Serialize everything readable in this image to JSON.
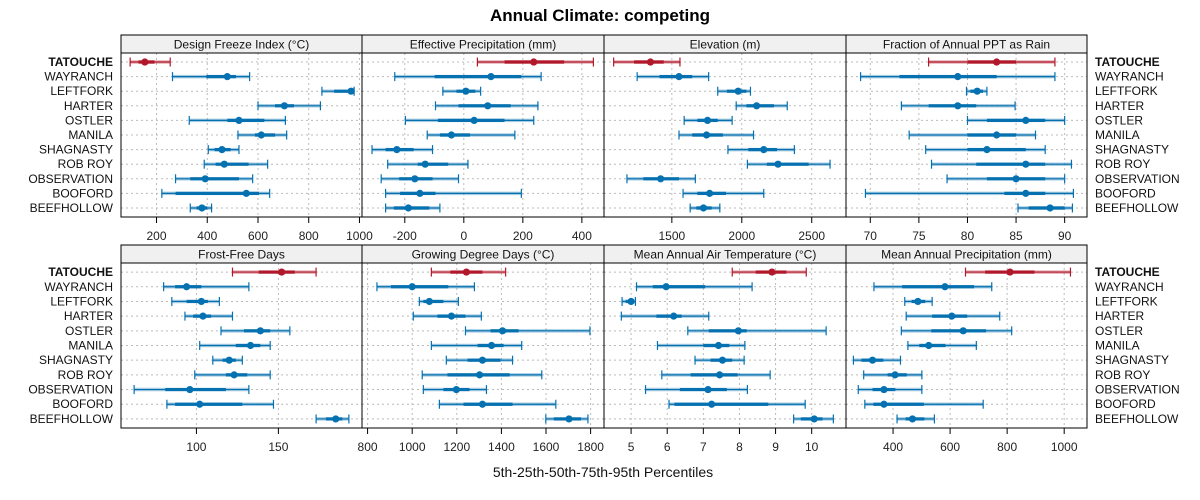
{
  "chart_data": {
    "type": "dot-interval",
    "title": "Annual Climate: competing",
    "xlabel": "5th-25th-50th-75th-95th Percentiles",
    "quantile_labels": [
      "p5",
      "p25",
      "p50",
      "p75",
      "p95"
    ],
    "sites": [
      "TATOUCHE",
      "WAYRANCH",
      "LEFTFORK",
      "HARTER",
      "OSTLER",
      "MANILA",
      "SHAGNASTY",
      "ROB ROY",
      "OBSERVATION",
      "BOOFORD",
      "BEEFHOLLOW"
    ],
    "highlight_site": "TATOUCHE",
    "colors": {
      "highlight": "#B2182B",
      "other": "#0571B0",
      "grid": "#BBBBBB",
      "strip_bg": "#F0F0F0"
    },
    "grid": true,
    "panels": [
      {
        "name": "Design Freeze Index (°C)",
        "xlim": [
          60,
          1010
        ],
        "ticks": [
          200,
          400,
          600,
          800,
          1000
        ],
        "data": [
          [
            96,
            129,
            154,
            192,
            254
          ],
          [
            263,
            396,
            479,
            513,
            567
          ],
          [
            852,
            900,
            967,
            975,
            979
          ],
          [
            600,
            667,
            704,
            742,
            846
          ],
          [
            329,
            479,
            525,
            625,
            708
          ],
          [
            521,
            588,
            613,
            667,
            713
          ],
          [
            404,
            429,
            458,
            492,
            525
          ],
          [
            388,
            433,
            467,
            563,
            638
          ],
          [
            275,
            333,
            392,
            525,
            579
          ],
          [
            221,
            275,
            554,
            604,
            646
          ],
          [
            333,
            358,
            379,
            400,
            417
          ]
        ]
      },
      {
        "name": "Effective Precipitation (mm)",
        "xlim": [
          -345,
          475
        ],
        "ticks": [
          -200,
          0,
          200,
          400
        ],
        "data": [
          [
            46,
            138,
            237,
            340,
            439
          ],
          [
            -234,
            -99,
            92,
            195,
            262
          ],
          [
            -71,
            -25,
            7,
            39,
            57
          ],
          [
            -96,
            -18,
            81,
            159,
            251
          ],
          [
            -198,
            -88,
            35,
            138,
            237
          ],
          [
            -124,
            -81,
            -42,
            21,
            173
          ],
          [
            -311,
            -265,
            -227,
            -170,
            -106
          ],
          [
            -258,
            -156,
            -131,
            -53,
            14
          ],
          [
            -280,
            -219,
            -166,
            -106,
            -18
          ],
          [
            -265,
            -216,
            -149,
            -96,
            195
          ],
          [
            -265,
            -237,
            -188,
            -117,
            -81
          ]
        ]
      },
      {
        "name": "Elevation (m)",
        "xlim": [
          1015,
          2745
        ],
        "ticks": [
          1500,
          2000,
          2500
        ],
        "data": [
          [
            1084,
            1230,
            1347,
            1442,
            1558
          ],
          [
            1252,
            1412,
            1551,
            1646,
            1763
          ],
          [
            1828,
            1894,
            1974,
            2033,
            2062
          ],
          [
            1960,
            2033,
            2106,
            2230,
            2325
          ],
          [
            1588,
            1682,
            1755,
            1828,
            1931
          ],
          [
            1551,
            1646,
            1748,
            1865,
            2084
          ],
          [
            1901,
            2047,
            2157,
            2252,
            2376
          ],
          [
            2040,
            2179,
            2259,
            2478,
            2631
          ],
          [
            1179,
            1296,
            1420,
            1551,
            1668
          ],
          [
            1580,
            1682,
            1770,
            1887,
            2157
          ],
          [
            1631,
            1675,
            1726,
            1785,
            1843
          ]
        ]
      },
      {
        "name": "Fraction of Annual PPT as Rain",
        "xlim": [
          67.5,
          92.3
        ],
        "ticks": [
          70,
          75,
          80,
          85,
          90
        ],
        "data": [
          [
            76,
            80,
            83,
            85,
            89
          ],
          [
            69,
            73,
            79,
            83,
            89
          ],
          [
            79.9,
            80.3,
            81,
            81.6,
            82
          ],
          [
            73.2,
            76,
            79,
            80.9,
            84.9
          ],
          [
            80,
            82,
            86,
            88,
            90
          ],
          [
            74,
            80,
            83,
            85,
            87
          ],
          [
            75.7,
            80,
            82,
            86,
            88
          ],
          [
            76.3,
            80.9,
            86,
            88,
            90.7
          ],
          [
            77.9,
            82,
            85,
            88,
            90
          ],
          [
            69.5,
            83.8,
            86,
            88,
            90.9
          ],
          [
            85.2,
            86.3,
            88.5,
            90,
            90.8
          ]
        ]
      },
      {
        "name": "Frost-Free Days",
        "xlim": [
          54,
          201
        ],
        "ticks": [
          100,
          150
        ],
        "data": [
          [
            122,
            138,
            152,
            160,
            173
          ],
          [
            80,
            87,
            94,
            103,
            132
          ],
          [
            85,
            94,
            103,
            107,
            114
          ],
          [
            93,
            98,
            104,
            109,
            122
          ],
          [
            115,
            129,
            139,
            145,
            157
          ],
          [
            102,
            124,
            133,
            139,
            145
          ],
          [
            110,
            116,
            120,
            124,
            128
          ],
          [
            99,
            118,
            123,
            131,
            145
          ],
          [
            62,
            81,
            96,
            118,
            132
          ],
          [
            82,
            87,
            102,
            128,
            147
          ],
          [
            173,
            179,
            185,
            189,
            193
          ]
        ]
      },
      {
        "name": "Growing Degree Days (°C)",
        "xlim": [
          775,
          1860
        ],
        "ticks": [
          800,
          1000,
          1200,
          1400,
          1600,
          1800
        ],
        "data": [
          [
            1086,
            1171,
            1243,
            1315,
            1419
          ],
          [
            842,
            905,
            1000,
            1162,
            1279
          ],
          [
            1032,
            1050,
            1077,
            1140,
            1207
          ],
          [
            1005,
            1113,
            1176,
            1239,
            1310
          ],
          [
            1239,
            1351,
            1405,
            1477,
            1797
          ],
          [
            1086,
            1293,
            1356,
            1410,
            1491
          ],
          [
            1153,
            1248,
            1315,
            1396,
            1450
          ],
          [
            1045,
            1158,
            1302,
            1437,
            1581
          ],
          [
            1050,
            1140,
            1198,
            1257,
            1333
          ],
          [
            1122,
            1230,
            1315,
            1450,
            1644
          ],
          [
            1599,
            1635,
            1703,
            1757,
            1788
          ]
        ]
      },
      {
        "name": "Mean Annual Air Temperature (°C)",
        "xlim": [
          4.25,
          10.95
        ],
        "ticks": [
          5,
          6,
          7,
          8,
          9,
          10
        ],
        "data": [
          [
            7.8,
            8.45,
            8.9,
            9.3,
            9.85
          ],
          [
            5.15,
            5.6,
            5.97,
            7.05,
            8.35
          ],
          [
            4.75,
            4.85,
            5.0,
            5.08,
            5.12
          ],
          [
            4.73,
            5.7,
            6.18,
            6.4,
            7.15
          ],
          [
            6.57,
            7.15,
            7.97,
            8.2,
            10.4
          ],
          [
            5.73,
            7.0,
            7.42,
            7.72,
            8.15
          ],
          [
            6.77,
            7.2,
            7.53,
            7.8,
            8.13
          ],
          [
            5.85,
            6.65,
            7.45,
            7.95,
            8.85
          ],
          [
            5.4,
            6.35,
            7.13,
            7.65,
            8.22
          ],
          [
            6.05,
            6.2,
            7.23,
            8.8,
            9.82
          ],
          [
            9.5,
            9.7,
            10.07,
            10.3,
            10.6
          ]
        ]
      },
      {
        "name": "Mean Annual Precipitation (mm)",
        "xlim": [
          235,
          1080
        ],
        "ticks": [
          400,
          600,
          800,
          1000
        ],
        "data": [
          [
            654,
            723,
            810,
            896,
            1022
          ],
          [
            333,
            432,
            582,
            684,
            746
          ],
          [
            441,
            465,
            487,
            513,
            537
          ],
          [
            446,
            537,
            606,
            660,
            774
          ],
          [
            429,
            534,
            646,
            726,
            816
          ],
          [
            452,
            492,
            525,
            584,
            692
          ],
          [
            261,
            289,
            328,
            366,
            426
          ],
          [
            297,
            381,
            407,
            448,
            501
          ],
          [
            278,
            328,
            368,
            408,
            501
          ],
          [
            301,
            331,
            368,
            508,
            716
          ],
          [
            414,
            444,
            468,
            510,
            545
          ]
        ]
      }
    ]
  }
}
